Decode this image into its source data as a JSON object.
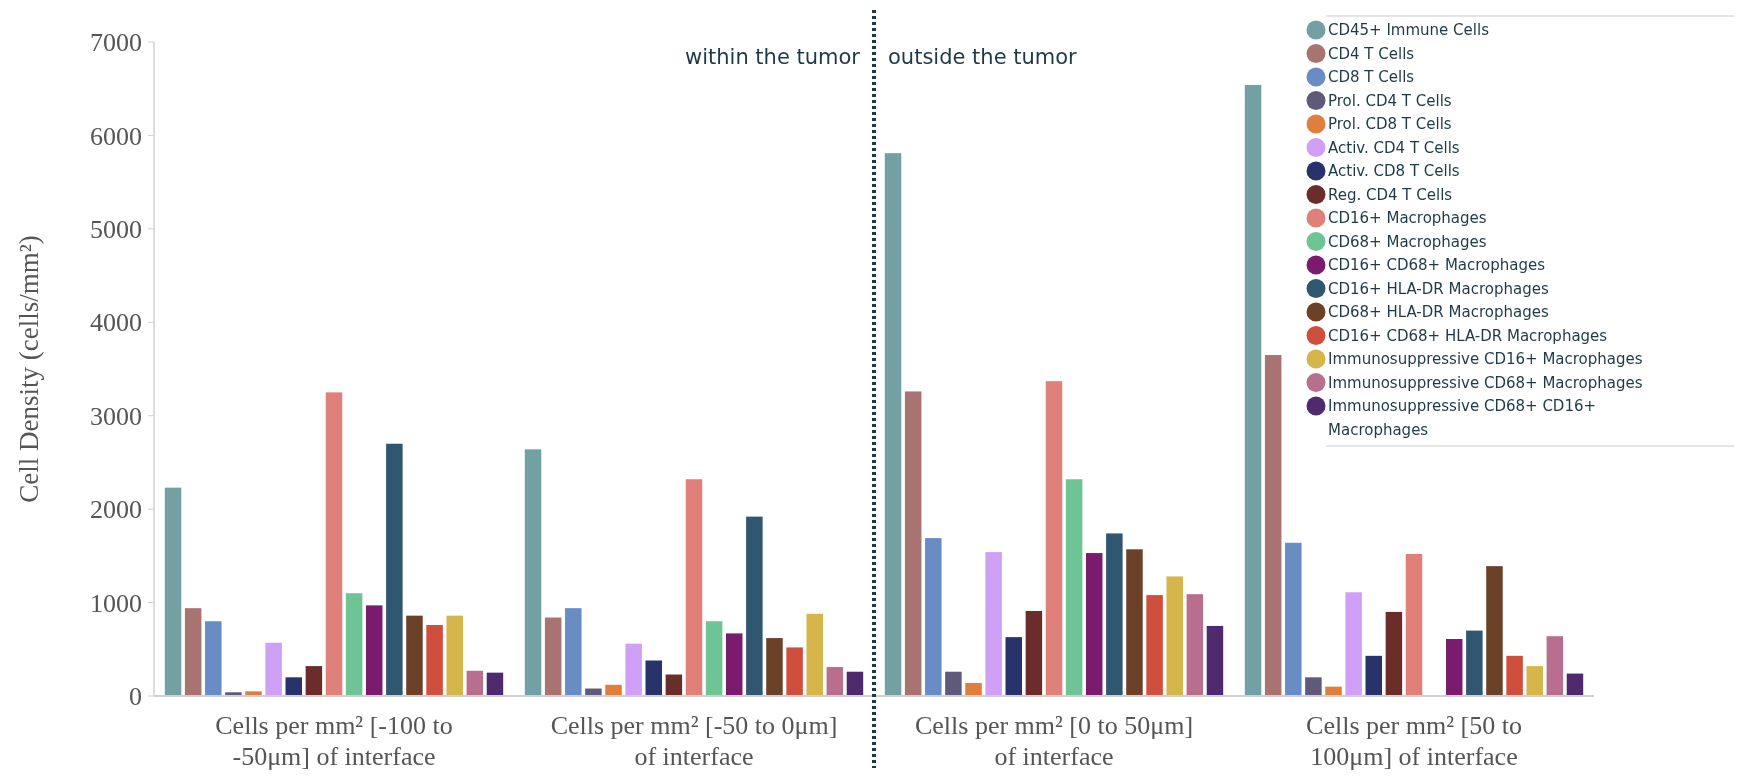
{
  "chart_data": {
    "type": "bar",
    "ylabel": "Cell Density (cells/mm²)",
    "categories": [
      "Cells per mm² [-100 to -50μm] of interface",
      "Cells per mm² [-50 to 0μm] of interface",
      "Cells per mm² [0 to 50μm] of interface",
      "Cells per mm² [50 to 100μm] of interface"
    ],
    "series": [
      {
        "name": "CD45+ Immune Cells",
        "color": "#73a0a2",
        "values": [
          2230,
          2640,
          5810,
          6540
        ]
      },
      {
        "name": "CD4 T Cells",
        "color": "#a87370",
        "values": [
          940,
          840,
          3260,
          3650
        ]
      },
      {
        "name": "CD8 T Cells",
        "color": "#6a8cc4",
        "values": [
          800,
          940,
          1690,
          1640
        ]
      },
      {
        "name": "Prol. CD4 T Cells",
        "color": "#5f5a7a",
        "values": [
          40,
          80,
          260,
          200
        ]
      },
      {
        "name": "Prol. CD8 T Cells",
        "color": "#e07e3c",
        "values": [
          50,
          120,
          140,
          100
        ]
      },
      {
        "name": "Activ. CD4 T Cells",
        "color": "#cfa0f5",
        "values": [
          570,
          560,
          1540,
          1110
        ]
      },
      {
        "name": "Activ. CD8 T Cells",
        "color": "#27336a",
        "values": [
          200,
          380,
          630,
          430
        ]
      },
      {
        "name": "Reg. CD4 T Cells",
        "color": "#6b2d2a",
        "values": [
          320,
          230,
          910,
          900
        ]
      },
      {
        "name": "CD16+ Macrophages",
        "color": "#e0807a",
        "values": [
          3250,
          2320,
          3370,
          1520
        ]
      },
      {
        "name": "CD68+ Macrophages",
        "color": "#6fc495",
        "values": [
          1100,
          800,
          2320,
          null
        ]
      },
      {
        "name": "CD16+ CD68+ Macrophages",
        "color": "#7a1b6e",
        "values": [
          970,
          670,
          1530,
          610
        ]
      },
      {
        "name": "CD16+ HLA-DR Macrophages",
        "color": "#305670",
        "values": [
          2700,
          1920,
          1740,
          700
        ]
      },
      {
        "name": "CD68+ HLA-DR Macrophages",
        "color": "#6b4128",
        "values": [
          860,
          620,
          1570,
          1390
        ]
      },
      {
        "name": "CD16+ CD68+ HLA-DR Macrophages",
        "color": "#cf4f3c",
        "values": [
          760,
          520,
          1080,
          430
        ]
      },
      {
        "name": "Immunosuppressive CD16+ Macrophages",
        "color": "#d6b54a",
        "values": [
          860,
          880,
          1280,
          320
        ]
      },
      {
        "name": "Immunosuppressive CD68+ Macrophages",
        "color": "#b86e8d",
        "values": [
          270,
          310,
          1090,
          640
        ]
      },
      {
        "name": "Immunosuppressive CD68+ CD16+ Macrophages",
        "color": "#4f2a6e",
        "values": [
          250,
          260,
          750,
          240
        ]
      }
    ],
    "ylim": [
      0,
      7000
    ],
    "yticks": [
      0,
      1000,
      2000,
      3000,
      4000,
      5000,
      6000,
      7000
    ],
    "annotations": [
      "within the tumor",
      "outside the tumor"
    ],
    "legend": "top right"
  }
}
